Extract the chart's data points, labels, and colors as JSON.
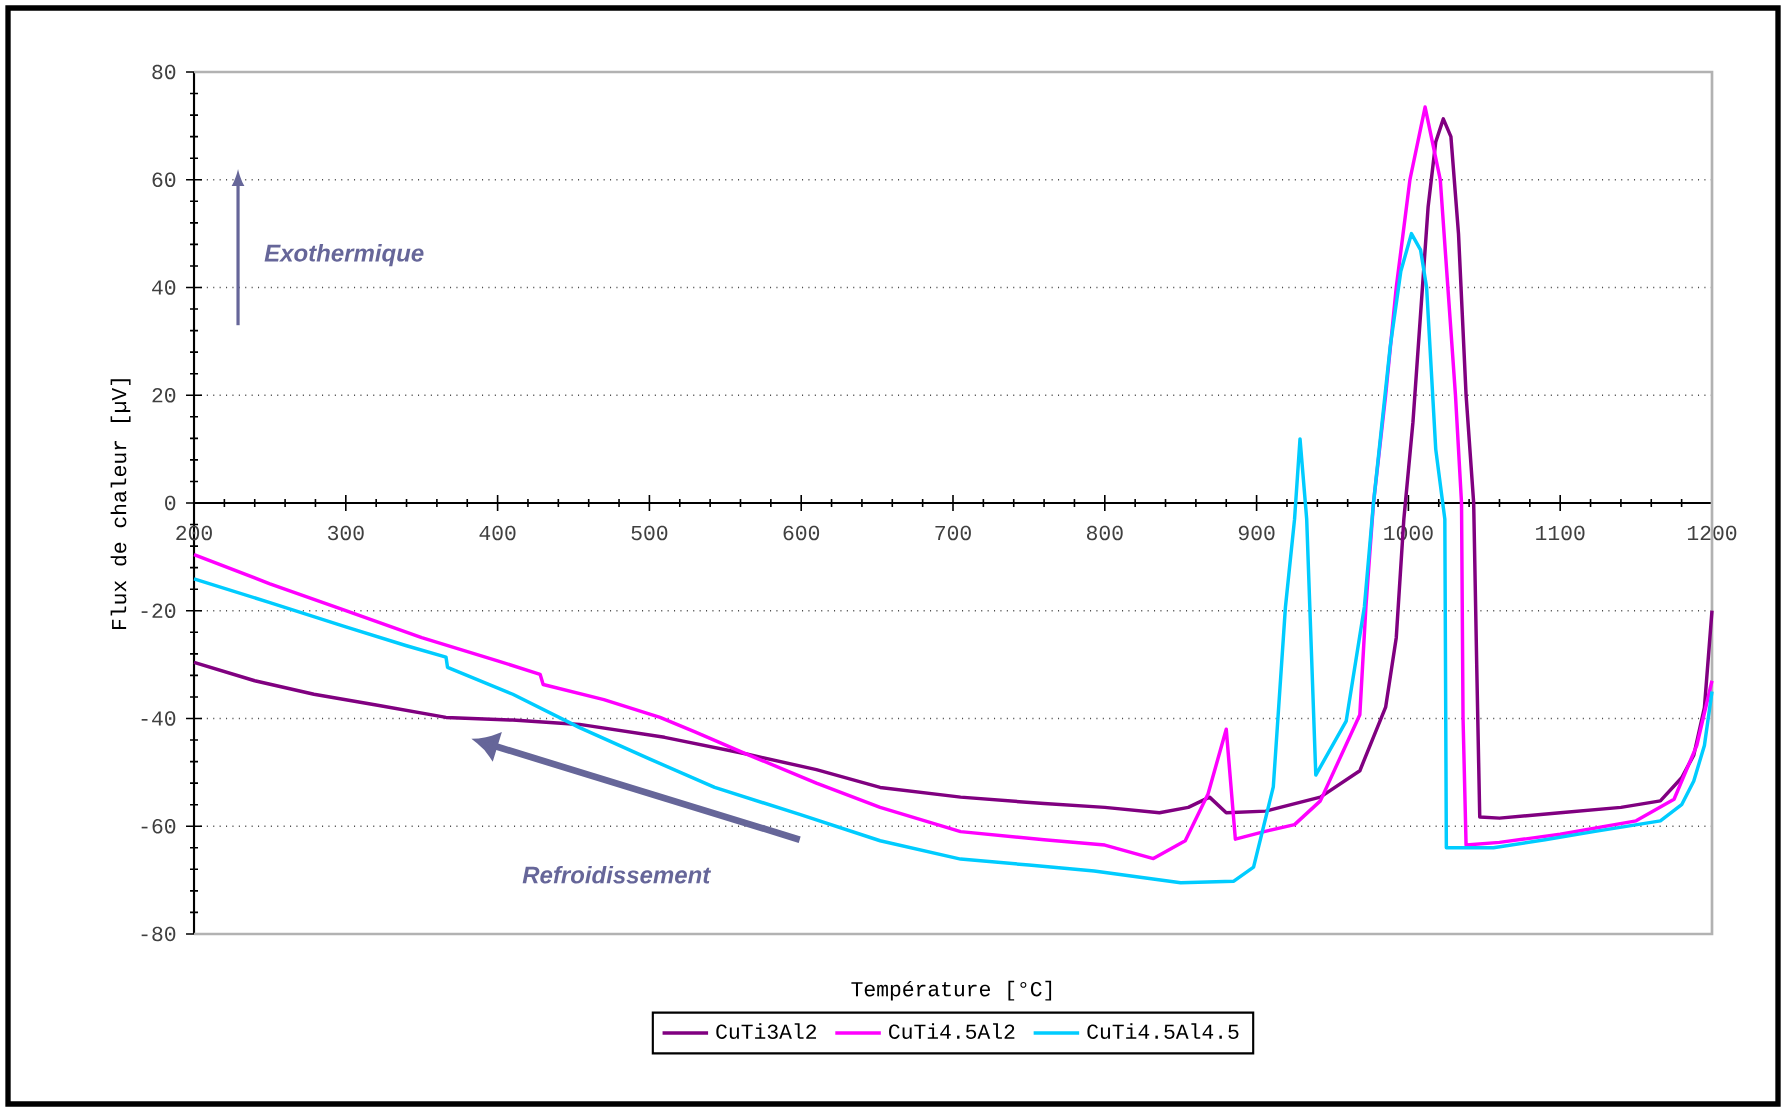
{
  "chart_data": {
    "type": "line",
    "xlabel": "Température [°C]",
    "ylabel": "Flux de chaleur [µV]",
    "xlim": [
      200,
      1200
    ],
    "xticks": [
      200,
      300,
      400,
      500,
      600,
      700,
      800,
      900,
      1000,
      1100,
      1200
    ],
    "ylim": [
      -80,
      80
    ],
    "yticks": [
      -80,
      -60,
      -40,
      -20,
      0,
      20,
      40,
      60,
      80
    ],
    "grid": "y",
    "legend": "bottom",
    "marker": "none",
    "annotations": [
      "Exothermique",
      "Refroidissement"
    ],
    "series": [
      {
        "name": "CuTi3Al2",
        "color": "#800080",
        "x": [
          200,
          240,
          279,
          320,
          366,
          410,
          454,
          510,
          564,
          610,
          652,
          705,
          760,
          800,
          836,
          855,
          869,
          880,
          906,
          942,
          968,
          985,
          992,
          997,
          1003,
          1008,
          1013,
          1018,
          1023,
          1028,
          1033,
          1038,
          1043,
          1045,
          1047,
          1060,
          1100,
          1140,
          1166,
          1180,
          1188,
          1195,
          1200
        ],
        "values": [
          -29.6,
          -33,
          -35.5,
          -37.5,
          -39.8,
          -40.3,
          -41.1,
          -43.5,
          -46.6,
          -49.5,
          -52.8,
          -54.6,
          -55.8,
          -56.5,
          -57.5,
          -56.5,
          -54.6,
          -57.5,
          -57.2,
          -54.6,
          -49.7,
          -37.9,
          -25,
          -3,
          15,
          35,
          55,
          67,
          71.3,
          68,
          50,
          20,
          0,
          -30,
          -58.3,
          -58.5,
          -57.5,
          -56.5,
          -55.3,
          -51,
          -46.8,
          -38,
          -20
        ]
      },
      {
        "name": "CuTi4.5Al2",
        "color": "#ff00ff",
        "x": [
          200,
          250,
          300,
          350,
          400,
          428,
          430,
          470,
          507,
          530,
          564,
          610,
          652,
          705,
          760,
          800,
          832,
          853,
          868,
          880,
          886,
          905,
          925,
          942,
          968,
          972,
          977,
          985,
          992,
          1001,
          1011,
          1021,
          1026,
          1031,
          1035,
          1036,
          1038,
          1060,
          1100,
          1150,
          1175,
          1190,
          1200
        ],
        "values": [
          -9.6,
          -15,
          -20,
          -25,
          -29.3,
          -31.8,
          -33.7,
          -36.5,
          -39.8,
          -42.5,
          -46.6,
          -52,
          -56.5,
          -61,
          -62.5,
          -63.5,
          -66,
          -62.7,
          -54,
          -42,
          -62.4,
          -61,
          -59.7,
          -55.3,
          -39.3,
          -19.3,
          0,
          20,
          40,
          60,
          73.5,
          60,
          40,
          20,
          0,
          -40,
          -63.5,
          -63,
          -61.5,
          -59,
          -55,
          -45,
          -33
        ]
      },
      {
        "name": "CuTi4.5Al4.5",
        "color": "#00ccff",
        "x": [
          200,
          250,
          300,
          340,
          366,
          367,
          410,
          454,
          500,
          543,
          599,
          652,
          705,
          750,
          793,
          850,
          885,
          898,
          911,
          919,
          925,
          928.6,
          933,
          939,
          959,
          971,
          977,
          988,
          995,
          1002,
          1008,
          1012,
          1018,
          1024,
          1025,
          1056,
          1090,
          1122,
          1166,
          1180,
          1188,
          1195,
          1200
        ],
        "values": [
          -14.1,
          -18.5,
          -23,
          -26.5,
          -28.6,
          -30.5,
          -35.5,
          -41.7,
          -47.5,
          -52.8,
          -57.8,
          -62.7,
          -66.1,
          -67.2,
          -68.3,
          -70.5,
          -70.2,
          -67.6,
          -52.7,
          -19.3,
          -3,
          11.9,
          -3,
          -50.5,
          -40.5,
          -19.3,
          0,
          29,
          43,
          50,
          47,
          40,
          10,
          -3,
          -64,
          -64,
          -62.5,
          -61,
          -59,
          -56,
          -51.6,
          -45,
          -35
        ]
      }
    ]
  }
}
